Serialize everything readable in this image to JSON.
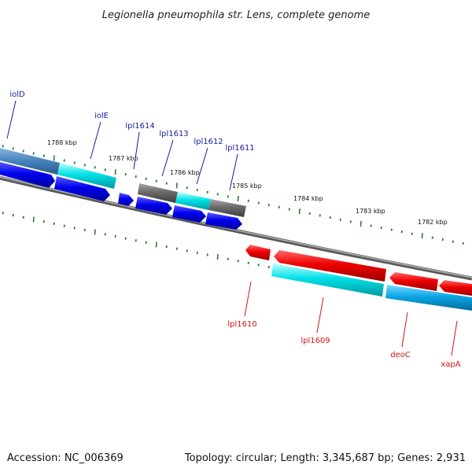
{
  "title": "Legionella pneumophila str. Lens, complete genome",
  "footer": {
    "accession": "Accession: NC_006369",
    "summary": "Topology: circular; Length: 3,345,687 bp; Genes: 2,931"
  },
  "colors": {
    "backbone": "#8a8a8a",
    "tick": "#2e7d2e",
    "blue_gene": "#0000ee",
    "cyan_gene": "#00e0e6",
    "gray_gene": "#6a6a6a",
    "steel_gene": "#4a86c0",
    "red_gene": "#ee0000",
    "sky_gene": "#0aa6e6",
    "blue_label": "#1a1aa0",
    "red_label": "#d01515"
  },
  "scale_labels": [
    "1788 kbp",
    "1787 kbp",
    "1786 kbp",
    "1785 kbp",
    "1784 kbp",
    "1783 kbp",
    "1782 kbp"
  ],
  "upper_gene_labels": [
    "iolD",
    "iolE",
    "lpl1614",
    "lpl1613",
    "lpl1612",
    "lpl1611"
  ],
  "lower_gene_labels": [
    "lpl1610",
    "lpl1609",
    "deoC",
    "xapA"
  ]
}
